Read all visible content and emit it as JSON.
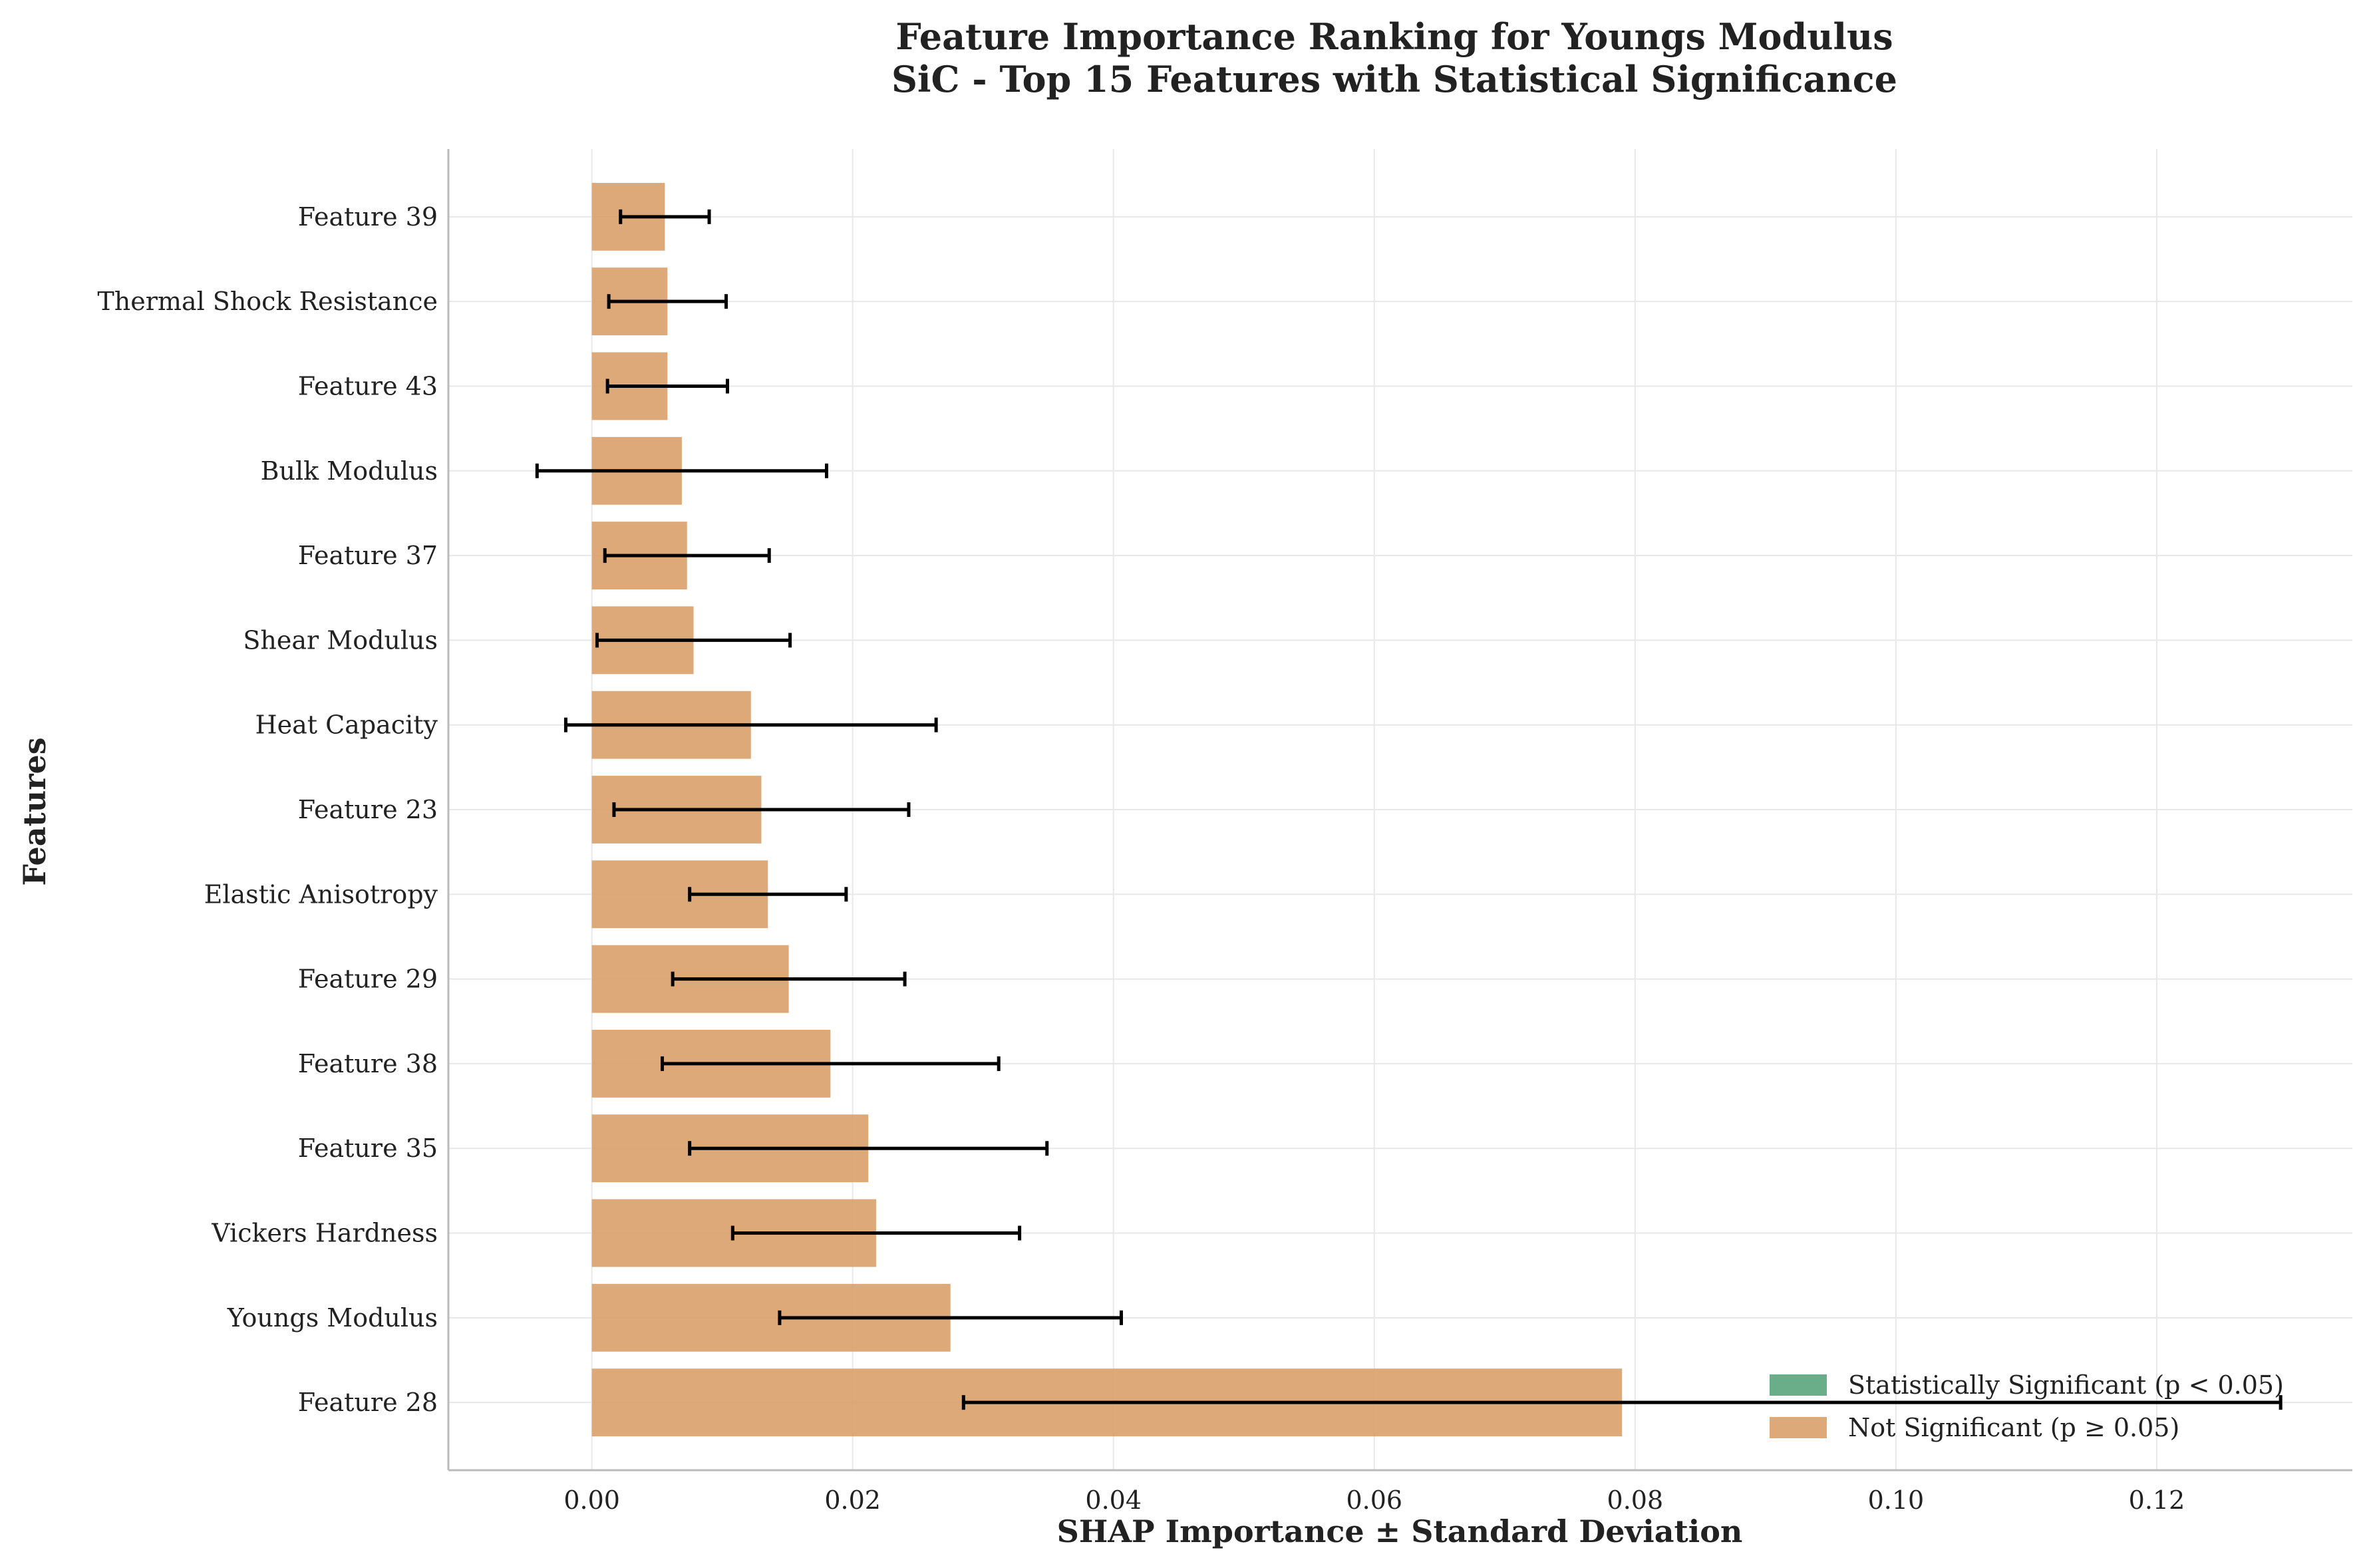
{
  "chart_data": {
    "type": "bar",
    "orientation": "horizontal",
    "title": "Feature Importance Ranking for Youngs Modulus",
    "subtitle": "SiC - Top 15 Features with Statistical Significance",
    "xlabel": "SHAP Importance ± Standard Deviation",
    "ylabel": "Features",
    "xlim": [
      -0.011,
      0.135
    ],
    "xticks": [
      0.0,
      0.02,
      0.04,
      0.06,
      0.08,
      0.1,
      0.12
    ],
    "xtick_labels": [
      "0.00",
      "0.02",
      "0.04",
      "0.06",
      "0.08",
      "0.10",
      "0.12"
    ],
    "grid": true,
    "legend_position": "bottom-right",
    "categories": [
      "Feature 39",
      "Thermal Shock Resistance",
      "Feature 43",
      "Bulk Modulus",
      "Feature 37",
      "Shear Modulus",
      "Heat Capacity",
      "Feature 23",
      "Elastic Anisotropy",
      "Feature 29",
      "Feature 38",
      "Feature 35",
      "Vickers Hardness",
      "Youngs Modulus",
      "Feature 28"
    ],
    "values": [
      0.0056,
      0.0058,
      0.0058,
      0.0069,
      0.0073,
      0.0078,
      0.0122,
      0.013,
      0.0135,
      0.0151,
      0.0183,
      0.0212,
      0.0218,
      0.0275,
      0.079
    ],
    "std": [
      0.0034,
      0.0045,
      0.0046,
      0.0111,
      0.0063,
      0.0074,
      0.0142,
      0.0113,
      0.006,
      0.0089,
      0.0129,
      0.0137,
      0.011,
      0.0131,
      0.0505
    ],
    "significant": [
      false,
      false,
      false,
      false,
      false,
      false,
      false,
      false,
      false,
      false,
      false,
      false,
      false,
      false,
      false
    ],
    "legend": [
      {
        "label": "Statistically Significant (p < 0.05)",
        "color": "#5aa57c"
      },
      {
        "label": "Not Significant (p ≥ 0.05)",
        "color": "#d9a06a"
      }
    ],
    "colors": {
      "significant": "#5aa57c",
      "not_significant": "#d9a06a",
      "error_bar": "#000000",
      "grid": "#e8e8e8",
      "axis": "#bbbbbb"
    }
  }
}
